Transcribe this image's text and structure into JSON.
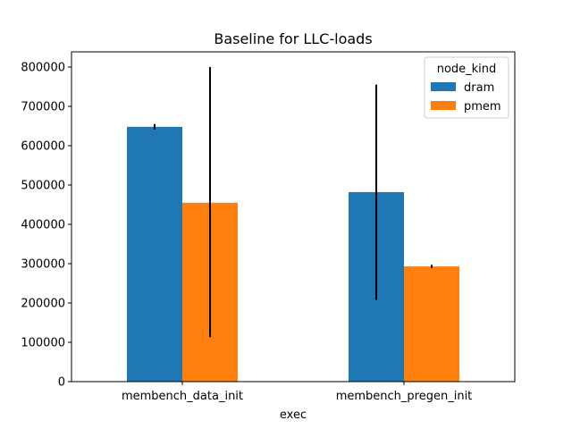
{
  "chart_data": {
    "type": "bar",
    "title": "Baseline for LLC-loads",
    "xlabel": "exec",
    "ylabel": "",
    "categories": [
      "membench_data_init",
      "membench_pregen_init"
    ],
    "legend": {
      "title": "node_kind",
      "placement": "top-right"
    },
    "series": [
      {
        "name": "dram",
        "color": "#1f77b4",
        "values": [
          648000,
          482000
        ],
        "error_low": [
          641000,
          208000
        ],
        "error_high": [
          655000,
          755000
        ]
      },
      {
        "name": "pmem",
        "color": "#ff7f0e",
        "values": [
          455000,
          293000
        ],
        "error_low": [
          113000,
          289000
        ],
        "error_high": [
          800000,
          297000
        ]
      }
    ],
    "ylim": [
      0,
      800000
    ],
    "yticks": [
      0,
      100000,
      200000,
      300000,
      400000,
      500000,
      600000,
      700000,
      800000
    ],
    "ytick_labels": [
      "0",
      "100000",
      "200000",
      "300000",
      "400000",
      "500000",
      "600000",
      "700000",
      "800000"
    ],
    "grid": false
  }
}
